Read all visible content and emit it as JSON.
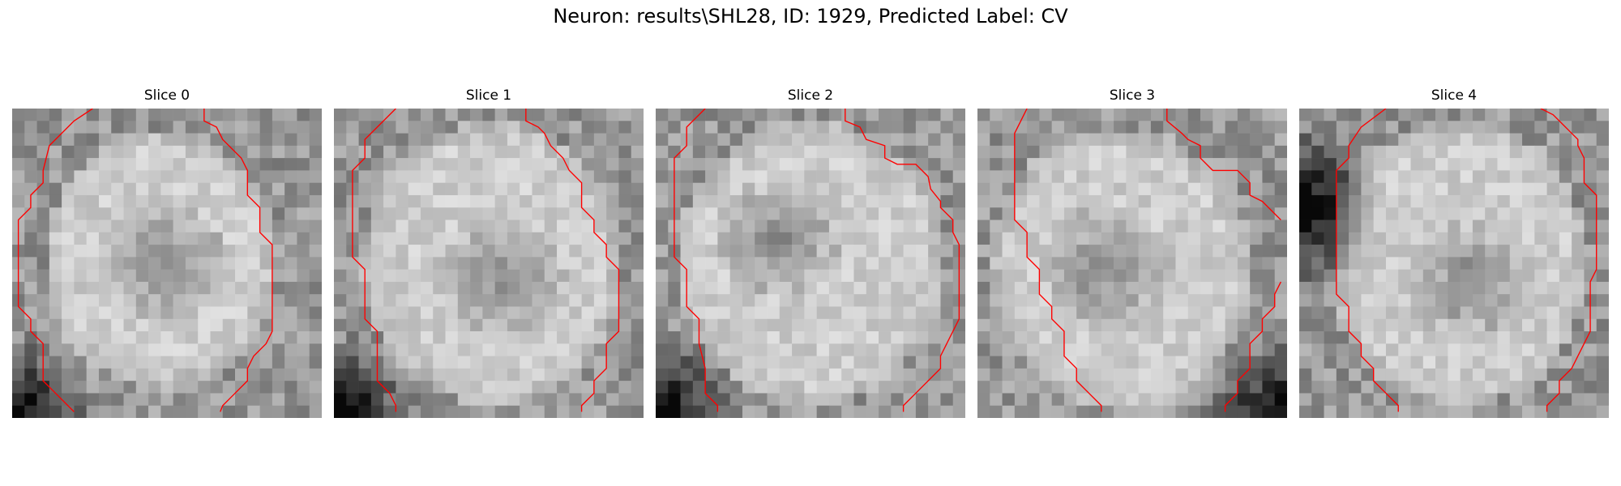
{
  "figure": {
    "title": "Neuron: results\\SHL28, ID: 1929, Predicted Label: CV"
  },
  "colors": {
    "contour": "#ff0000",
    "background": "#ffffff"
  },
  "colormap": "gray",
  "slices": [
    {
      "label": "Slice 0"
    },
    {
      "label": "Slice 1"
    },
    {
      "label": "Slice 2"
    },
    {
      "label": "Slice 3"
    },
    {
      "label": "Slice 4"
    }
  ]
}
